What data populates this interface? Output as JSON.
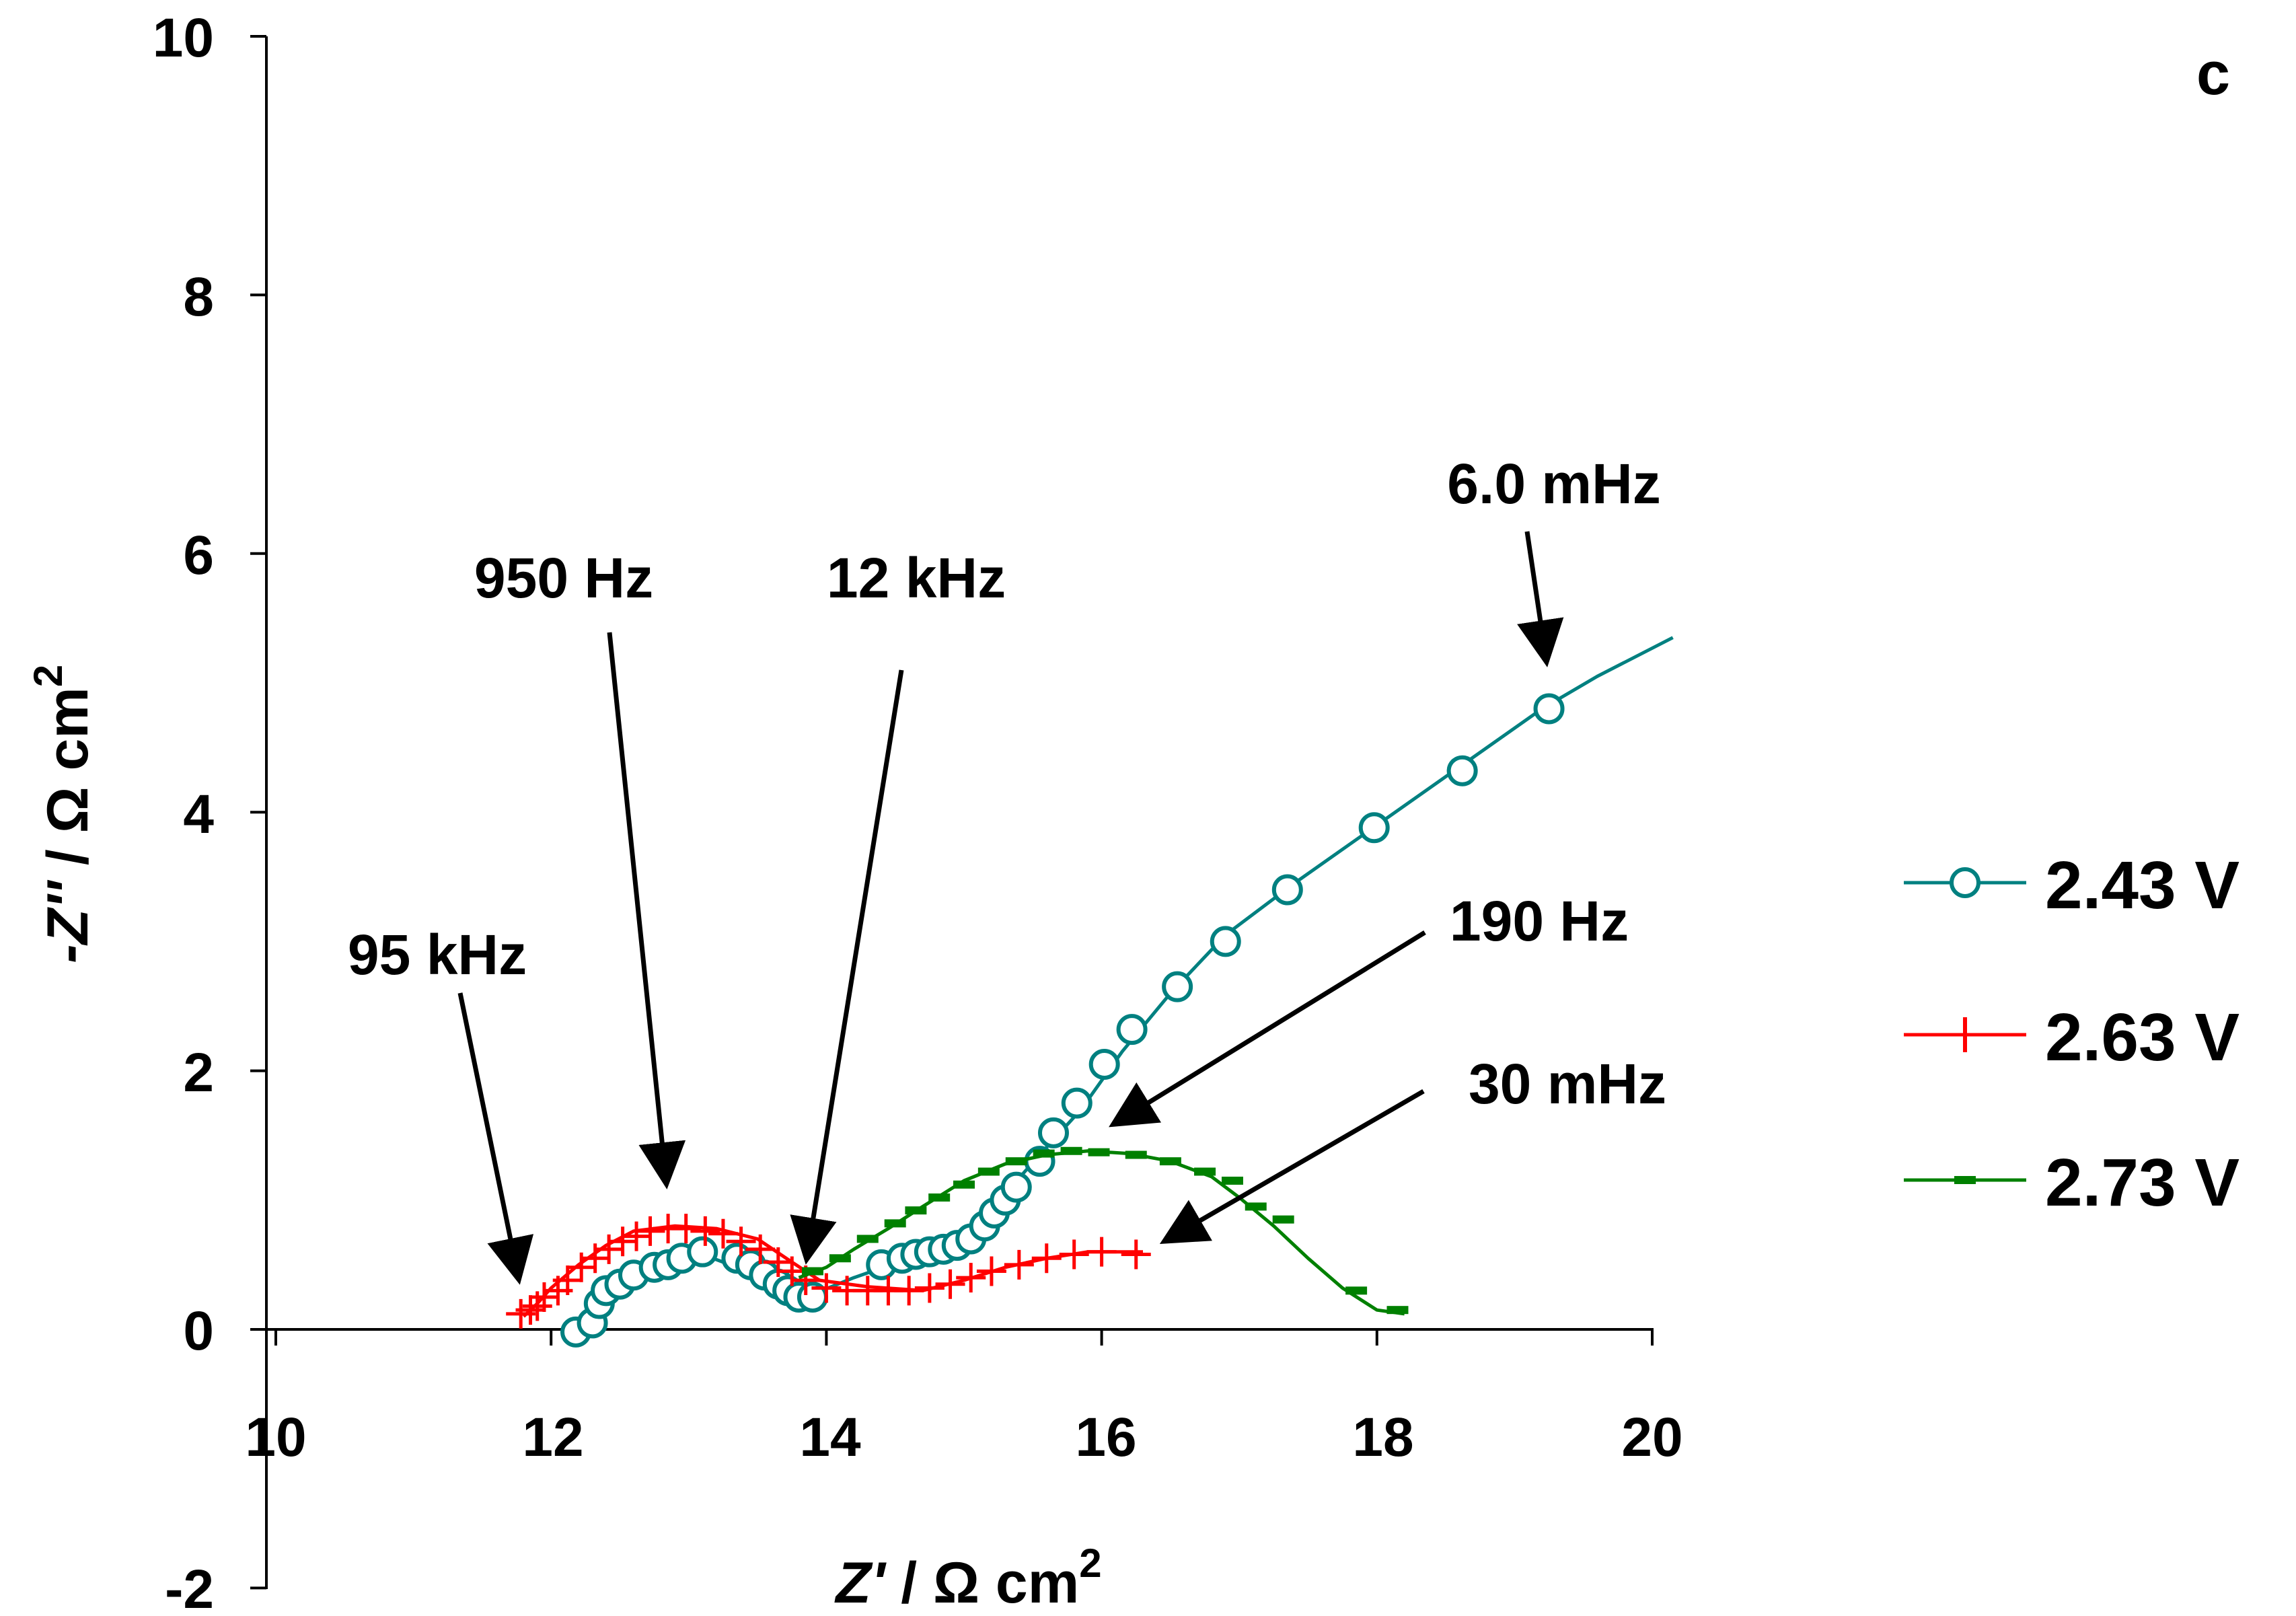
{
  "chart_data": {
    "type": "scatter",
    "panel_label": "c",
    "xlabel": {
      "var": "Z'",
      "unit": " / Ω cm",
      "sup": "2"
    },
    "ylabel": {
      "var": "-Z''",
      "unit": " / Ω cm",
      "sup": "2"
    },
    "xlim": [
      10,
      20
    ],
    "ylim": [
      -2,
      10
    ],
    "xticks": [
      "10",
      "12",
      "14",
      "16",
      "18",
      "20"
    ],
    "yticks": [
      "-2",
      "0",
      "2",
      "4",
      "6",
      "8",
      "10"
    ],
    "legend_position": "right",
    "series": [
      {
        "name": "2.43 V",
        "color": "#008080",
        "marker": "circle",
        "curve": [
          [
            12.2,
            -0.05
          ],
          [
            12.3,
            0.1
          ],
          [
            12.45,
            0.4
          ],
          [
            12.7,
            0.48
          ],
          [
            13.0,
            0.62
          ],
          [
            13.3,
            0.5
          ],
          [
            13.6,
            0.35
          ],
          [
            13.85,
            0.25
          ],
          [
            14.2,
            0.4
          ],
          [
            14.6,
            0.55
          ],
          [
            15.0,
            0.7
          ],
          [
            15.3,
            1.05
          ],
          [
            15.55,
            1.35
          ],
          [
            15.85,
            1.7
          ],
          [
            16.15,
            2.15
          ],
          [
            16.5,
            2.6
          ],
          [
            16.9,
            3.05
          ],
          [
            17.4,
            3.45
          ],
          [
            18.0,
            3.9
          ],
          [
            18.6,
            4.35
          ],
          [
            19.2,
            4.8
          ],
          [
            19.6,
            5.05
          ],
          [
            20.15,
            5.35
          ]
        ],
        "points": [
          [
            12.18,
            -0.02
          ],
          [
            12.3,
            0.05
          ],
          [
            12.35,
            0.2
          ],
          [
            12.4,
            0.3
          ],
          [
            12.5,
            0.35
          ],
          [
            12.6,
            0.42
          ],
          [
            12.75,
            0.48
          ],
          [
            12.85,
            0.5
          ],
          [
            12.95,
            0.55
          ],
          [
            13.1,
            0.6
          ],
          [
            13.35,
            0.55
          ],
          [
            13.45,
            0.5
          ],
          [
            13.55,
            0.42
          ],
          [
            13.65,
            0.35
          ],
          [
            13.72,
            0.3
          ],
          [
            13.8,
            0.25
          ],
          [
            13.9,
            0.25
          ],
          [
            14.4,
            0.5
          ],
          [
            14.55,
            0.55
          ],
          [
            14.65,
            0.58
          ],
          [
            14.75,
            0.6
          ],
          [
            14.85,
            0.62
          ],
          [
            14.95,
            0.65
          ],
          [
            15.05,
            0.7
          ],
          [
            15.15,
            0.8
          ],
          [
            15.22,
            0.9
          ],
          [
            15.3,
            1.0
          ],
          [
            15.38,
            1.1
          ],
          [
            15.55,
            1.3
          ],
          [
            15.65,
            1.52
          ],
          [
            15.82,
            1.75
          ],
          [
            16.02,
            2.05
          ],
          [
            16.22,
            2.32
          ],
          [
            16.55,
            2.65
          ],
          [
            16.9,
            3.0
          ],
          [
            17.35,
            3.4
          ],
          [
            17.98,
            3.88
          ],
          [
            18.62,
            4.32
          ],
          [
            19.25,
            4.8
          ]
        ]
      },
      {
        "name": "2.63 V",
        "color": "#ff0000",
        "marker": "plus",
        "curve": [
          [
            11.8,
            0.1
          ],
          [
            11.9,
            0.2
          ],
          [
            12.0,
            0.32
          ],
          [
            12.2,
            0.5
          ],
          [
            12.4,
            0.65
          ],
          [
            12.6,
            0.76
          ],
          [
            12.9,
            0.8
          ],
          [
            13.2,
            0.78
          ],
          [
            13.5,
            0.7
          ],
          [
            13.75,
            0.52
          ],
          [
            13.95,
            0.38
          ],
          [
            14.3,
            0.33
          ],
          [
            14.7,
            0.3
          ],
          [
            15.0,
            0.38
          ],
          [
            15.3,
            0.48
          ],
          [
            15.6,
            0.55
          ],
          [
            15.9,
            0.6
          ],
          [
            16.3,
            0.6
          ]
        ],
        "points": [
          [
            11.78,
            0.12
          ],
          [
            11.85,
            0.15
          ],
          [
            11.9,
            0.18
          ],
          [
            11.95,
            0.25
          ],
          [
            12.05,
            0.3
          ],
          [
            12.12,
            0.38
          ],
          [
            12.22,
            0.48
          ],
          [
            12.32,
            0.55
          ],
          [
            12.42,
            0.62
          ],
          [
            12.52,
            0.68
          ],
          [
            12.62,
            0.72
          ],
          [
            12.72,
            0.76
          ],
          [
            12.85,
            0.78
          ],
          [
            12.98,
            0.78
          ],
          [
            13.12,
            0.76
          ],
          [
            13.25,
            0.74
          ],
          [
            13.38,
            0.68
          ],
          [
            13.52,
            0.62
          ],
          [
            13.65,
            0.52
          ],
          [
            13.75,
            0.45
          ],
          [
            13.85,
            0.38
          ],
          [
            14.0,
            0.32
          ],
          [
            14.15,
            0.3
          ],
          [
            14.3,
            0.3
          ],
          [
            14.45,
            0.3
          ],
          [
            14.6,
            0.3
          ],
          [
            14.75,
            0.32
          ],
          [
            14.9,
            0.35
          ],
          [
            15.05,
            0.4
          ],
          [
            15.2,
            0.45
          ],
          [
            15.4,
            0.5
          ],
          [
            15.6,
            0.55
          ],
          [
            15.8,
            0.58
          ],
          [
            16.0,
            0.6
          ],
          [
            16.25,
            0.58
          ]
        ]
      },
      {
        "name": "2.73 V",
        "color": "#008000",
        "marker": "dash",
        "curve": [
          [
            13.8,
            0.4
          ],
          [
            14.0,
            0.48
          ],
          [
            14.2,
            0.62
          ],
          [
            14.45,
            0.78
          ],
          [
            14.7,
            0.95
          ],
          [
            15.0,
            1.15
          ],
          [
            15.3,
            1.28
          ],
          [
            15.6,
            1.35
          ],
          [
            15.9,
            1.38
          ],
          [
            16.2,
            1.36
          ],
          [
            16.5,
            1.3
          ],
          [
            16.8,
            1.18
          ],
          [
            17.0,
            1.02
          ],
          [
            17.25,
            0.8
          ],
          [
            17.5,
            0.55
          ],
          [
            17.75,
            0.32
          ],
          [
            18.0,
            0.15
          ],
          [
            18.2,
            0.12
          ]
        ],
        "points": [
          [
            13.9,
            0.45
          ],
          [
            14.1,
            0.55
          ],
          [
            14.3,
            0.7
          ],
          [
            14.5,
            0.82
          ],
          [
            14.65,
            0.92
          ],
          [
            14.82,
            1.02
          ],
          [
            15.0,
            1.12
          ],
          [
            15.18,
            1.22
          ],
          [
            15.38,
            1.3
          ],
          [
            15.58,
            1.36
          ],
          [
            15.78,
            1.38
          ],
          [
            15.98,
            1.37
          ],
          [
            16.25,
            1.35
          ],
          [
            16.5,
            1.3
          ],
          [
            16.75,
            1.22
          ],
          [
            16.95,
            1.15
          ],
          [
            17.12,
            0.95
          ],
          [
            17.32,
            0.85
          ],
          [
            17.85,
            0.3
          ],
          [
            18.15,
            0.15
          ]
        ]
      }
    ],
    "annotations": [
      {
        "text": "95 kHz",
        "target": [
          11.8,
          0.3
        ]
      },
      {
        "text": "950 Hz",
        "target": [
          12.85,
          0.95
        ]
      },
      {
        "text": "12 kHz",
        "target": [
          13.85,
          0.5
        ]
      },
      {
        "text": "6.0 mHz",
        "target": [
          19.2,
          5.05
        ]
      },
      {
        "text": "190 Hz",
        "target": [
          16.05,
          1.55
        ]
      },
      {
        "text": "30 mHz",
        "target": [
          16.45,
          0.68
        ]
      }
    ]
  }
}
